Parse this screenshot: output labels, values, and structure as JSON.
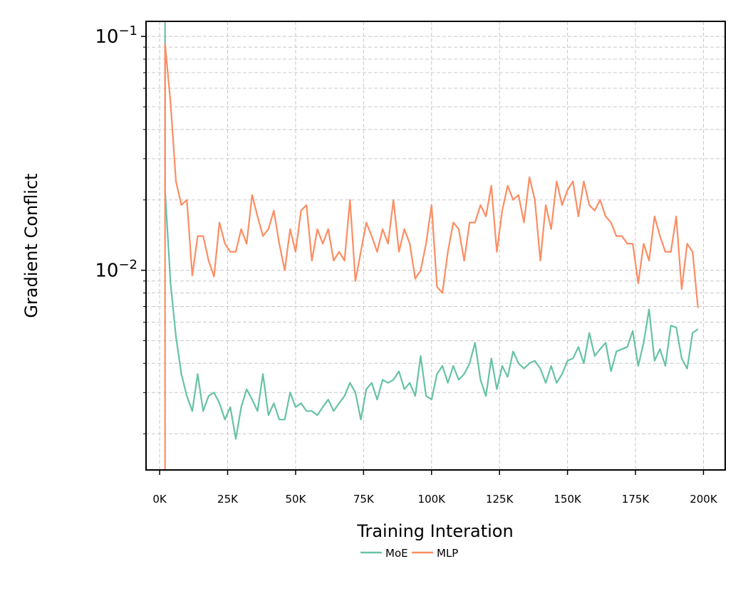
{
  "chart_data": {
    "type": "line",
    "title": "",
    "xlabel": "Training Interation",
    "ylabel": "Gradient Conflict",
    "yscale": "log",
    "xlim": [
      -5000,
      208000
    ],
    "ylim": [
      0.0014,
      0.116
    ],
    "grid": true,
    "legend_position": "bottom-center, below axes",
    "x_ticks": [
      0,
      25000,
      50000,
      75000,
      100000,
      125000,
      150000,
      175000,
      200000
    ],
    "x_tick_labels": [
      "0K",
      "25K",
      "50K",
      "75K",
      "100K",
      "125K",
      "150K",
      "175K",
      "200K"
    ],
    "y_ticks": [
      0.01,
      0.1
    ],
    "y_tick_labels": [
      {
        "base": "10",
        "exp": "−2"
      },
      {
        "base": "10",
        "exp": "−1"
      }
    ],
    "x": [
      2000,
      4000,
      6000,
      8000,
      10000,
      12000,
      14000,
      16000,
      18000,
      20000,
      22000,
      24000,
      26000,
      28000,
      30000,
      32000,
      34000,
      36000,
      38000,
      40000,
      42000,
      44000,
      46000,
      48000,
      50000,
      52000,
      54000,
      56000,
      58000,
      60000,
      62000,
      64000,
      66000,
      68000,
      70000,
      72000,
      74000,
      76000,
      78000,
      80000,
      82000,
      84000,
      86000,
      88000,
      90000,
      92000,
      94000,
      96000,
      98000,
      100000,
      102000,
      104000,
      106000,
      108000,
      110000,
      112000,
      114000,
      116000,
      118000,
      120000,
      122000,
      124000,
      126000,
      128000,
      130000,
      132000,
      134000,
      136000,
      138000,
      140000,
      142000,
      144000,
      146000,
      148000,
      150000,
      152000,
      154000,
      156000,
      158000,
      160000,
      162000,
      164000,
      166000,
      168000,
      170000,
      172000,
      174000,
      176000,
      178000,
      180000,
      182000,
      184000,
      186000,
      188000,
      190000,
      192000,
      194000,
      196000,
      198000
    ],
    "series": [
      {
        "name": "MoE",
        "color": "#66c2a5",
        "values": [
          0.022,
          0.0088,
          0.0052,
          0.0036,
          0.0029,
          0.0025,
          0.0036,
          0.0025,
          0.0029,
          0.003,
          0.0027,
          0.0023,
          0.0026,
          0.0019,
          0.0026,
          0.0031,
          0.0028,
          0.0025,
          0.0036,
          0.0024,
          0.0027,
          0.0023,
          0.0023,
          0.003,
          0.0026,
          0.0027,
          0.0025,
          0.0025,
          0.0024,
          0.0026,
          0.0028,
          0.0025,
          0.0027,
          0.0029,
          0.0033,
          0.003,
          0.0023,
          0.0031,
          0.0033,
          0.0028,
          0.0034,
          0.0033,
          0.0034,
          0.0037,
          0.0031,
          0.0033,
          0.0029,
          0.0043,
          0.0029,
          0.0028,
          0.0036,
          0.0039,
          0.0033,
          0.0039,
          0.0034,
          0.0036,
          0.004,
          0.0049,
          0.0034,
          0.0029,
          0.0042,
          0.0031,
          0.0039,
          0.0035,
          0.0045,
          0.004,
          0.0038,
          0.004,
          0.0041,
          0.0038,
          0.0033,
          0.0039,
          0.0033,
          0.0036,
          0.0041,
          0.0042,
          0.0047,
          0.004,
          0.0054,
          0.0043,
          0.0046,
          0.0049,
          0.0037,
          0.0045,
          0.0046,
          0.0047,
          0.0055,
          0.0039,
          0.0049,
          0.0068,
          0.0041,
          0.0046,
          0.0039,
          0.0058,
          0.0057,
          0.0042,
          0.0038,
          0.0054,
          0.0056
        ]
      },
      {
        "name": "MLP",
        "color": "#fc8d62",
        "values": [
          0.093,
          0.052,
          0.024,
          0.019,
          0.02,
          0.0095,
          0.014,
          0.014,
          0.011,
          0.0094,
          0.016,
          0.013,
          0.012,
          0.012,
          0.015,
          0.013,
          0.021,
          0.017,
          0.014,
          0.015,
          0.018,
          0.013,
          0.01,
          0.015,
          0.012,
          0.018,
          0.019,
          0.011,
          0.015,
          0.013,
          0.015,
          0.011,
          0.012,
          0.011,
          0.02,
          0.009,
          0.012,
          0.016,
          0.014,
          0.012,
          0.015,
          0.013,
          0.02,
          0.012,
          0.015,
          0.013,
          0.0092,
          0.01,
          0.013,
          0.019,
          0.0085,
          0.008,
          0.012,
          0.016,
          0.015,
          0.011,
          0.016,
          0.016,
          0.019,
          0.017,
          0.023,
          0.012,
          0.018,
          0.023,
          0.02,
          0.021,
          0.016,
          0.025,
          0.02,
          0.011,
          0.019,
          0.015,
          0.024,
          0.019,
          0.022,
          0.024,
          0.017,
          0.024,
          0.019,
          0.018,
          0.02,
          0.017,
          0.016,
          0.014,
          0.014,
          0.013,
          0.013,
          0.0088,
          0.013,
          0.011,
          0.017,
          0.014,
          0.012,
          0.012,
          0.017,
          0.0083,
          0.013,
          0.012,
          0.0069
        ]
      }
    ]
  }
}
